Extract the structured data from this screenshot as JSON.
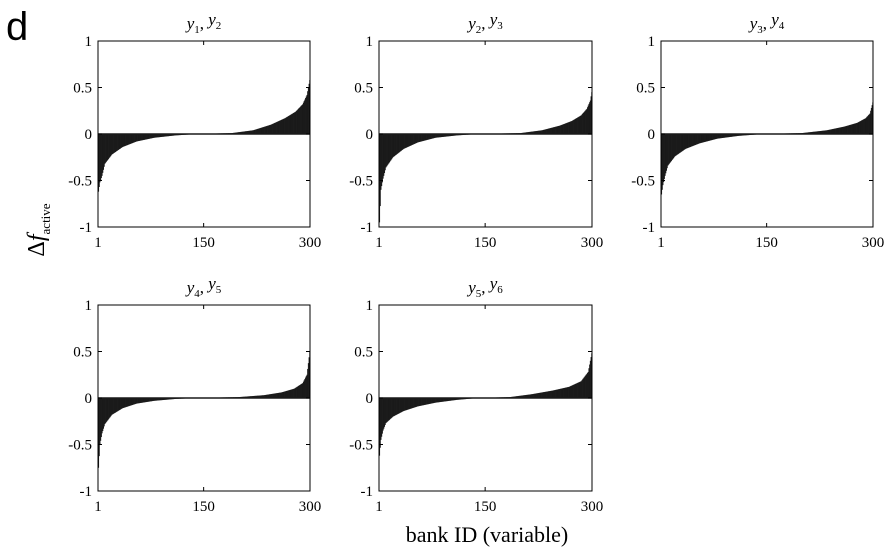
{
  "panel_letter": "d",
  "chart_data": {
    "type": "bar",
    "ylabel": {
      "delta": "Δ",
      "f": "f",
      "sub": "active"
    },
    "xlabel": "bank ID (variable)",
    "xlim": [
      1,
      300
    ],
    "ylim": [
      -1,
      1
    ],
    "xticks": [
      1,
      150,
      300
    ],
    "yticks": [
      1,
      0.5,
      0,
      -0.5,
      -1
    ],
    "grid": false,
    "bar_color": "#1a1a1a",
    "panels": [
      {
        "title": {
          "a": "y",
          "a_sub": "1",
          "sep": ", ",
          "b": "y",
          "b_sub": "2"
        },
        "n_bars": 300,
        "sorted_values": [
          {
            "rank": 1,
            "value": -0.62
          },
          {
            "rank": 3,
            "value": -0.52
          },
          {
            "rank": 6,
            "value": -0.45
          },
          {
            "rank": 10,
            "value": -0.32
          },
          {
            "rank": 20,
            "value": -0.22
          },
          {
            "rank": 35,
            "value": -0.14
          },
          {
            "rank": 55,
            "value": -0.08
          },
          {
            "rank": 80,
            "value": -0.04
          },
          {
            "rank": 110,
            "value": -0.015
          },
          {
            "rank": 140,
            "value": 0
          },
          {
            "rank": 190,
            "value": 0.01
          },
          {
            "rank": 220,
            "value": 0.04
          },
          {
            "rank": 245,
            "value": 0.1
          },
          {
            "rank": 265,
            "value": 0.17
          },
          {
            "rank": 280,
            "value": 0.24
          },
          {
            "rank": 290,
            "value": 0.32
          },
          {
            "rank": 296,
            "value": 0.42
          },
          {
            "rank": 300,
            "value": 0.58
          }
        ]
      },
      {
        "title": {
          "a": "y",
          "a_sub": "2",
          "sep": ", ",
          "b": "y",
          "b_sub": "3"
        },
        "n_bars": 300,
        "sorted_values": [
          {
            "rank": 1,
            "value": -0.95
          },
          {
            "rank": 3,
            "value": -0.6
          },
          {
            "rank": 6,
            "value": -0.48
          },
          {
            "rank": 10,
            "value": -0.36
          },
          {
            "rank": 20,
            "value": -0.25
          },
          {
            "rank": 35,
            "value": -0.16
          },
          {
            "rank": 55,
            "value": -0.09
          },
          {
            "rank": 80,
            "value": -0.04
          },
          {
            "rank": 110,
            "value": -0.015
          },
          {
            "rank": 140,
            "value": 0
          },
          {
            "rank": 200,
            "value": 0.01
          },
          {
            "rank": 230,
            "value": 0.04
          },
          {
            "rank": 255,
            "value": 0.09
          },
          {
            "rank": 272,
            "value": 0.14
          },
          {
            "rank": 285,
            "value": 0.2
          },
          {
            "rank": 293,
            "value": 0.27
          },
          {
            "rank": 298,
            "value": 0.36
          },
          {
            "rank": 300,
            "value": 0.45
          }
        ]
      },
      {
        "title": {
          "a": "y",
          "a_sub": "3",
          "sep": ", ",
          "b": "y",
          "b_sub": "4"
        },
        "n_bars": 300,
        "sorted_values": [
          {
            "rank": 1,
            "value": -0.65
          },
          {
            "rank": 3,
            "value": -0.55
          },
          {
            "rank": 6,
            "value": -0.45
          },
          {
            "rank": 10,
            "value": -0.34
          },
          {
            "rank": 20,
            "value": -0.24
          },
          {
            "rank": 35,
            "value": -0.16
          },
          {
            "rank": 55,
            "value": -0.1
          },
          {
            "rank": 80,
            "value": -0.05
          },
          {
            "rank": 110,
            "value": -0.02
          },
          {
            "rank": 145,
            "value": 0
          },
          {
            "rank": 200,
            "value": 0.01
          },
          {
            "rank": 235,
            "value": 0.04
          },
          {
            "rank": 260,
            "value": 0.08
          },
          {
            "rank": 278,
            "value": 0.12
          },
          {
            "rank": 290,
            "value": 0.17
          },
          {
            "rank": 296,
            "value": 0.22
          },
          {
            "rank": 300,
            "value": 0.34
          }
        ]
      },
      {
        "title": {
          "a": "y",
          "a_sub": "4",
          "sep": ", ",
          "b": "y",
          "b_sub": "5"
        },
        "n_bars": 300,
        "sorted_values": [
          {
            "rank": 1,
            "value": -0.75
          },
          {
            "rank": 3,
            "value": -0.5
          },
          {
            "rank": 6,
            "value": -0.38
          },
          {
            "rank": 10,
            "value": -0.28
          },
          {
            "rank": 20,
            "value": -0.18
          },
          {
            "rank": 35,
            "value": -0.11
          },
          {
            "rank": 55,
            "value": -0.06
          },
          {
            "rank": 80,
            "value": -0.03
          },
          {
            "rank": 110,
            "value": -0.01
          },
          {
            "rank": 140,
            "value": 0
          },
          {
            "rank": 200,
            "value": 0.01
          },
          {
            "rank": 235,
            "value": 0.03
          },
          {
            "rank": 260,
            "value": 0.06
          },
          {
            "rank": 278,
            "value": 0.1
          },
          {
            "rank": 290,
            "value": 0.16
          },
          {
            "rank": 296,
            "value": 0.25
          },
          {
            "rank": 300,
            "value": 0.5
          }
        ]
      },
      {
        "title": {
          "a": "y",
          "a_sub": "5",
          "sep": ", ",
          "b": "y",
          "b_sub": "6"
        },
        "n_bars": 300,
        "sorted_values": [
          {
            "rank": 1,
            "value": -0.62
          },
          {
            "rank": 3,
            "value": -0.45
          },
          {
            "rank": 6,
            "value": -0.35
          },
          {
            "rank": 10,
            "value": -0.27
          },
          {
            "rank": 20,
            "value": -0.2
          },
          {
            "rank": 35,
            "value": -0.14
          },
          {
            "rank": 55,
            "value": -0.09
          },
          {
            "rank": 80,
            "value": -0.05
          },
          {
            "rank": 110,
            "value": -0.02
          },
          {
            "rank": 140,
            "value": 0
          },
          {
            "rank": 185,
            "value": 0.01
          },
          {
            "rank": 215,
            "value": 0.04
          },
          {
            "rank": 245,
            "value": 0.08
          },
          {
            "rank": 268,
            "value": 0.12
          },
          {
            "rank": 285,
            "value": 0.18
          },
          {
            "rank": 295,
            "value": 0.28
          },
          {
            "rank": 300,
            "value": 0.48
          }
        ]
      }
    ]
  }
}
